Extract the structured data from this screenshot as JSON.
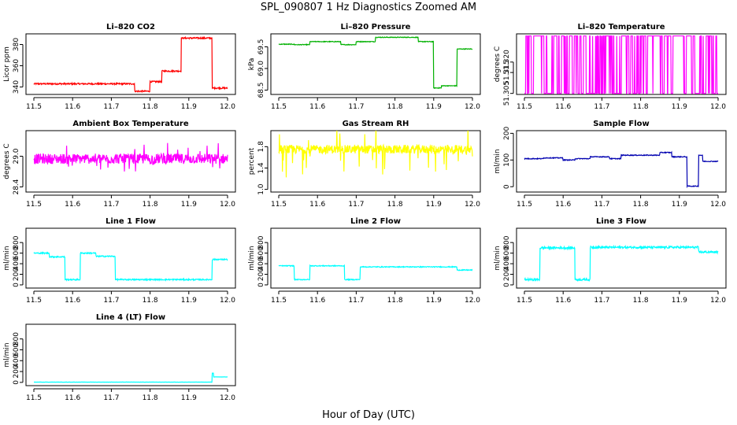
{
  "figure": {
    "title": "SPL_090807  1 Hz Diagnostics Zoomed AM",
    "xlabel": "Hour of Day (UTC)"
  },
  "chart_data": [
    {
      "type": "line",
      "title": "Li–820 CO2",
      "ylabel": "Licor ppm",
      "color": "#ff0000",
      "xlim": [
        11.5,
        12.0
      ],
      "ylim": [
        333,
        390
      ],
      "yticks": [
        "340",
        "360",
        "380"
      ],
      "segments": [
        [
          11.5,
          11.76,
          343
        ],
        [
          11.76,
          11.8,
          336
        ],
        [
          11.8,
          11.83,
          345
        ],
        [
          11.83,
          11.88,
          355
        ],
        [
          11.88,
          11.96,
          386
        ],
        [
          11.96,
          12.0,
          339
        ]
      ],
      "noise": 0.7
    },
    {
      "type": "line",
      "title": "Li–820 Pressure",
      "ylabel": "kPa",
      "color": "#00b000",
      "xlim": [
        11.5,
        12.0
      ],
      "ylim": [
        68.4,
        69.8
      ],
      "yticks": [
        "68.5",
        "69.0",
        "69.5"
      ],
      "segments": [
        [
          11.5,
          11.54,
          69.56
        ],
        [
          11.54,
          11.58,
          69.55
        ],
        [
          11.58,
          11.66,
          69.62
        ],
        [
          11.66,
          11.7,
          69.55
        ],
        [
          11.7,
          11.75,
          69.62
        ],
        [
          11.75,
          11.86,
          69.72
        ],
        [
          11.86,
          11.9,
          69.62
        ],
        [
          11.9,
          11.92,
          68.55
        ],
        [
          11.92,
          11.96,
          68.6
        ],
        [
          11.96,
          12.0,
          69.45
        ]
      ],
      "noise": 0.008
    },
    {
      "type": "line",
      "title": "Li–820 Temperature",
      "ylabel": "degrees C",
      "color": "#ff00ff",
      "xlim": [
        11.5,
        12.0
      ],
      "ylim": [
        51.3045,
        51.3335
      ],
      "yticks": [
        "51.305",
        "51.315",
        "51.320"
      ],
      "binary": [
        51.305,
        51.3325
      ]
    },
    {
      "type": "line",
      "title": "Ambient Box Temperature",
      "ylabel": "degrees C",
      "color": "#ff00ff",
      "xlim": [
        11.5,
        12.0
      ],
      "ylim": [
        28.3,
        29.5
      ],
      "yticks": [
        "28.4",
        "29.0"
      ],
      "segments": [
        [
          11.5,
          12.0,
          28.95
        ]
      ],
      "noise": 0.1,
      "spikes": 0.25
    },
    {
      "type": "line",
      "title": "Gas Stream RH",
      "ylabel": "percent",
      "color": "#ffff00",
      "xlim": [
        11.5,
        12.0
      ],
      "ylim": [
        0.95,
        2.1
      ],
      "yticks": [
        "1.0",
        "1.4",
        "1.8"
      ],
      "segments": [
        [
          11.5,
          12.0,
          1.75
        ]
      ],
      "noise": 0.08,
      "spikes": 0.5
    },
    {
      "type": "line",
      "title": "Sample Flow",
      "ylabel": "ml/min",
      "color": "#0000b0",
      "xlim": [
        11.5,
        12.0
      ],
      "ylim": [
        -20,
        210
      ],
      "yticks": [
        "0",
        "100",
        "200"
      ],
      "segments": [
        [
          11.5,
          11.55,
          105
        ],
        [
          11.55,
          11.6,
          108
        ],
        [
          11.6,
          11.63,
          100
        ],
        [
          11.63,
          11.67,
          105
        ],
        [
          11.67,
          11.72,
          112
        ],
        [
          11.72,
          11.75,
          105
        ],
        [
          11.75,
          11.85,
          118
        ],
        [
          11.85,
          11.88,
          128
        ],
        [
          11.88,
          11.92,
          112
        ],
        [
          11.92,
          11.95,
          2
        ],
        [
          11.95,
          11.96,
          118
        ],
        [
          11.96,
          12.0,
          95
        ]
      ],
      "noise": 1.5
    },
    {
      "type": "line",
      "title": "Line 1 Flow",
      "ylabel": "ml/min",
      "color": "#00ffff",
      "xlim": [
        11.5,
        12.0
      ],
      "ylim": [
        -60,
        1070
      ],
      "yticks": [
        "0",
        "200",
        "400",
        "600",
        "800"
      ],
      "segments": [
        [
          11.5,
          11.54,
          600
        ],
        [
          11.54,
          11.58,
          530
        ],
        [
          11.58,
          11.62,
          100
        ],
        [
          11.62,
          11.66,
          600
        ],
        [
          11.66,
          11.71,
          540
        ],
        [
          11.71,
          11.96,
          100
        ],
        [
          11.96,
          12.0,
          480
        ]
      ],
      "noise": 12
    },
    {
      "type": "line",
      "title": "Line 2 Flow",
      "ylabel": "ml/min",
      "color": "#00ffff",
      "xlim": [
        11.5,
        12.0
      ],
      "ylim": [
        -60,
        1070
      ],
      "yticks": [
        "0",
        "200",
        "400",
        "600",
        "800"
      ],
      "segments": [
        [
          11.5,
          11.54,
          360
        ],
        [
          11.54,
          11.58,
          100
        ],
        [
          11.58,
          11.67,
          360
        ],
        [
          11.67,
          11.71,
          100
        ],
        [
          11.71,
          11.96,
          340
        ],
        [
          11.96,
          12.0,
          280
        ]
      ],
      "noise": 8
    },
    {
      "type": "line",
      "title": "Line 3 Flow",
      "ylabel": "ml/min",
      "color": "#00ffff",
      "xlim": [
        11.5,
        12.0
      ],
      "ylim": [
        -60,
        1070
      ],
      "yticks": [
        "0",
        "200",
        "400",
        "600",
        "800"
      ],
      "segments": [
        [
          11.5,
          11.54,
          100
        ],
        [
          11.54,
          11.63,
          700
        ],
        [
          11.63,
          11.67,
          100
        ],
        [
          11.67,
          11.95,
          710
        ],
        [
          11.95,
          12.0,
          620
        ]
      ],
      "noise": 20
    },
    {
      "type": "line",
      "title": "Line 4 (LT) Flow",
      "ylabel": "ml/min",
      "color": "#00ffff",
      "xlim": [
        11.5,
        12.0
      ],
      "ylim": [
        -60,
        1070
      ],
      "yticks": [
        "0",
        "200",
        "400",
        "600",
        "800"
      ],
      "segments": [
        [
          11.5,
          11.96,
          5
        ],
        [
          11.96,
          12.0,
          100
        ]
      ],
      "noise": 1.5,
      "bump": [
        11.962,
        170
      ]
    }
  ],
  "xticks": [
    "11.5",
    "11.6",
    "11.7",
    "11.8",
    "11.9",
    "12.0"
  ]
}
